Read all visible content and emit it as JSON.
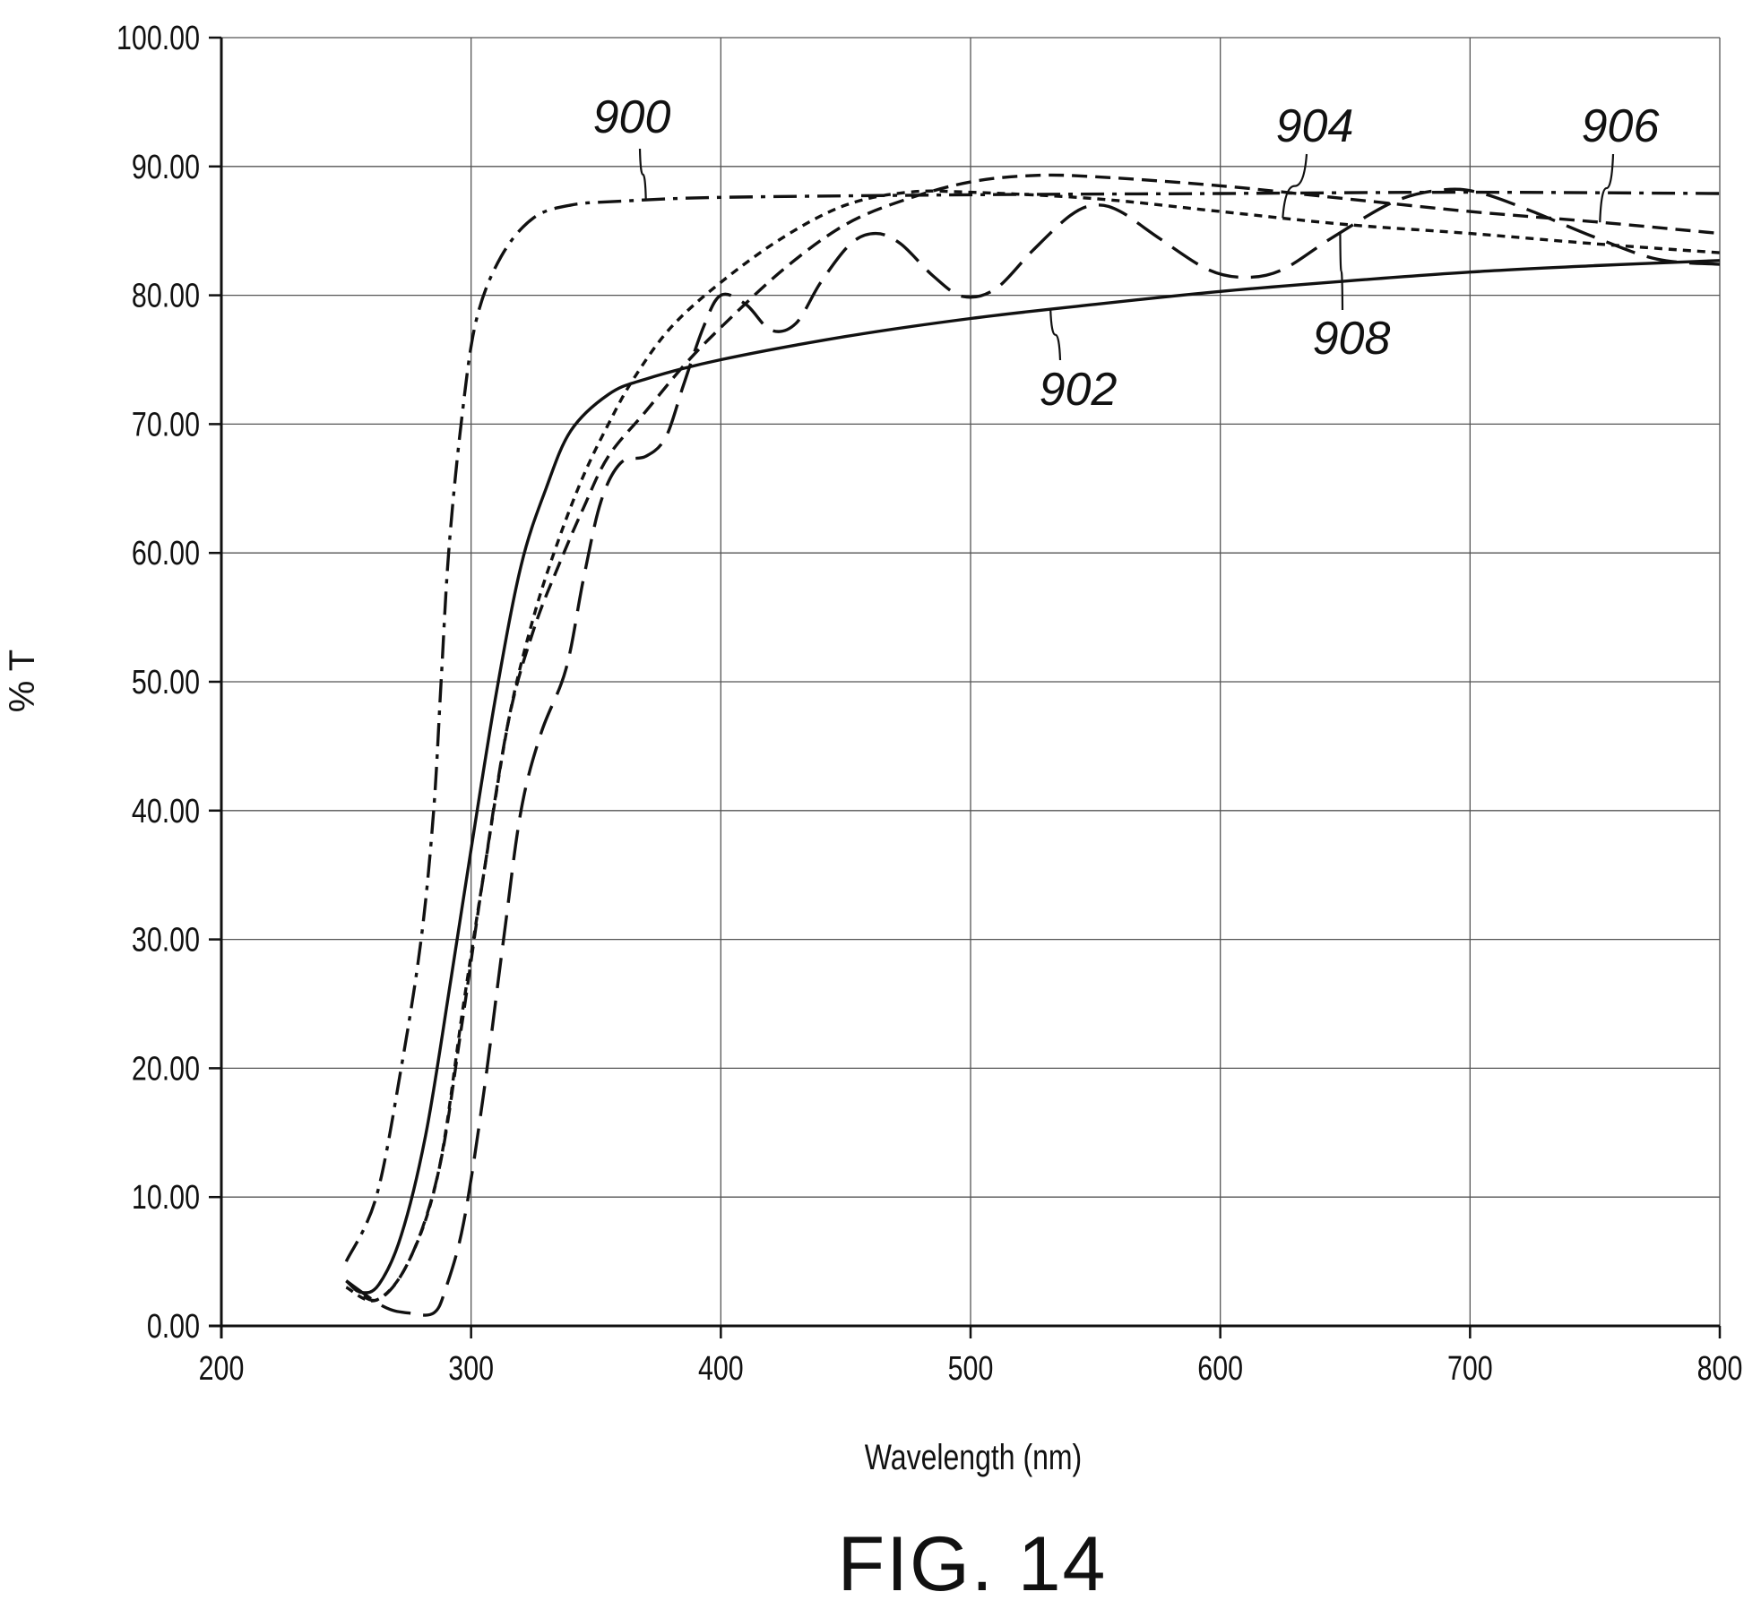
{
  "chart_data": {
    "type": "line",
    "xlabel": "Wavelength (nm)",
    "ylabel": "% T",
    "caption": "FIG. 14",
    "xlim": [
      200,
      800
    ],
    "ylim": [
      0,
      100
    ],
    "x_ticks": [
      200,
      300,
      400,
      500,
      600,
      700,
      800
    ],
    "x_tick_labels": [
      "200",
      "300",
      "400",
      "500",
      "600",
      "700",
      "800"
    ],
    "y_ticks": [
      0,
      10,
      20,
      30,
      40,
      50,
      60,
      70,
      80,
      90,
      100
    ],
    "y_tick_labels": [
      "0.00",
      "10.00",
      "20.00",
      "30.00",
      "40.00",
      "50.00",
      "60.00",
      "70.00",
      "80.00",
      "90.00",
      "100.00"
    ],
    "grid": true,
    "series": [
      {
        "name": "900",
        "dash": "dash-dot",
        "points": [
          [
            250,
            5
          ],
          [
            262,
            10
          ],
          [
            272,
            20
          ],
          [
            280,
            30
          ],
          [
            285,
            40
          ],
          [
            288,
            50
          ],
          [
            291,
            60
          ],
          [
            296,
            70
          ],
          [
            302,
            78
          ],
          [
            312,
            83
          ],
          [
            325,
            86
          ],
          [
            340,
            87
          ],
          [
            360,
            87.3
          ],
          [
            400,
            87.6
          ],
          [
            500,
            87.8
          ],
          [
            600,
            87.9
          ],
          [
            700,
            88
          ],
          [
            800,
            87.9
          ]
        ]
      },
      {
        "name": "902",
        "dash": "solid",
        "points": [
          [
            250,
            3.5
          ],
          [
            256,
            2.6
          ],
          [
            263,
            3.2
          ],
          [
            272,
            7
          ],
          [
            282,
            15
          ],
          [
            292,
            27
          ],
          [
            300,
            37
          ],
          [
            310,
            49
          ],
          [
            320,
            59
          ],
          [
            330,
            65
          ],
          [
            340,
            69.5
          ],
          [
            355,
            72.3
          ],
          [
            370,
            73.5
          ],
          [
            400,
            75
          ],
          [
            450,
            76.8
          ],
          [
            500,
            78.2
          ],
          [
            550,
            79.3
          ],
          [
            600,
            80.3
          ],
          [
            650,
            81.1
          ],
          [
            700,
            81.8
          ],
          [
            750,
            82.3
          ],
          [
            800,
            82.7
          ]
        ]
      },
      {
        "name": "904",
        "dash": "short-dash",
        "points": [
          [
            250,
            3
          ],
          [
            262,
            2
          ],
          [
            275,
            5
          ],
          [
            287,
            12
          ],
          [
            297,
            25
          ],
          [
            305,
            35
          ],
          [
            315,
            47
          ],
          [
            325,
            55
          ],
          [
            335,
            61
          ],
          [
            345,
            66
          ],
          [
            355,
            70
          ],
          [
            365,
            73.5
          ],
          [
            380,
            77.5
          ],
          [
            400,
            81
          ],
          [
            425,
            84.5
          ],
          [
            450,
            87
          ],
          [
            475,
            88
          ],
          [
            500,
            88
          ],
          [
            550,
            87.5
          ],
          [
            600,
            86.5
          ],
          [
            650,
            85.5
          ],
          [
            700,
            84.8
          ],
          [
            750,
            84
          ],
          [
            800,
            83.3
          ]
        ]
      },
      {
        "name": "906",
        "dash": "medium-dash",
        "points": [
          [
            250,
            3.5
          ],
          [
            262,
            2
          ],
          [
            275,
            5
          ],
          [
            287,
            12
          ],
          [
            296,
            23
          ],
          [
            305,
            35
          ],
          [
            315,
            47
          ],
          [
            325,
            54
          ],
          [
            335,
            59
          ],
          [
            345,
            63.5
          ],
          [
            355,
            67.5
          ],
          [
            370,
            71
          ],
          [
            385,
            74.5
          ],
          [
            400,
            77.5
          ],
          [
            425,
            82
          ],
          [
            450,
            85.5
          ],
          [
            475,
            87.5
          ],
          [
            500,
            88.8
          ],
          [
            525,
            89.3
          ],
          [
            550,
            89.2
          ],
          [
            600,
            88.5
          ],
          [
            650,
            87.5
          ],
          [
            700,
            86.5
          ],
          [
            750,
            85.7
          ],
          [
            800,
            84.8
          ]
        ]
      },
      {
        "name": "908",
        "dash": "long-dash",
        "points": [
          [
            250,
            3.5
          ],
          [
            265,
            1.5
          ],
          [
            275,
            1
          ],
          [
            285,
            1
          ],
          [
            290,
            3
          ],
          [
            297,
            8
          ],
          [
            305,
            18
          ],
          [
            313,
            30
          ],
          [
            320,
            40
          ],
          [
            328,
            46
          ],
          [
            338,
            51
          ],
          [
            345,
            58
          ],
          [
            352,
            64
          ],
          [
            360,
            67
          ],
          [
            370,
            67.5
          ],
          [
            378,
            69
          ],
          [
            385,
            73
          ],
          [
            393,
            77.5
          ],
          [
            400,
            80
          ],
          [
            410,
            79.3
          ],
          [
            420,
            77.3
          ],
          [
            430,
            77.8
          ],
          [
            440,
            81
          ],
          [
            452,
            84
          ],
          [
            462,
            84.8
          ],
          [
            472,
            84
          ],
          [
            485,
            81.5
          ],
          [
            497,
            79.9
          ],
          [
            510,
            80.5
          ],
          [
            525,
            83.5
          ],
          [
            540,
            86.2
          ],
          [
            550,
            87
          ],
          [
            560,
            86.5
          ],
          [
            575,
            84.5
          ],
          [
            595,
            82
          ],
          [
            610,
            81.4
          ],
          [
            625,
            82
          ],
          [
            645,
            84.5
          ],
          [
            670,
            87.3
          ],
          [
            690,
            88.2
          ],
          [
            705,
            87.9
          ],
          [
            725,
            86.5
          ],
          [
            750,
            84.5
          ],
          [
            775,
            82.8
          ],
          [
            800,
            82.4
          ]
        ]
      }
    ],
    "annotations": [
      {
        "text": "900",
        "target_series": "900"
      },
      {
        "text": "902",
        "target_series": "902"
      },
      {
        "text": "904",
        "target_series": "904"
      },
      {
        "text": "906",
        "target_series": "906"
      },
      {
        "text": "908",
        "target_series": "908"
      }
    ]
  }
}
